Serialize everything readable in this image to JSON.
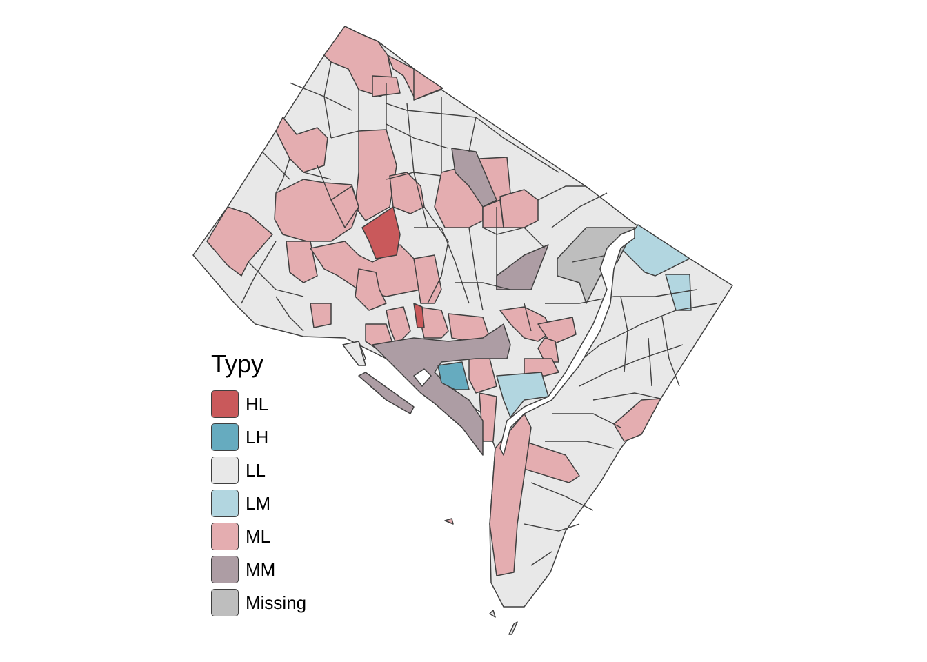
{
  "legend": {
    "title": "Typy",
    "items": [
      {
        "label": "HL",
        "color": "#c9595b"
      },
      {
        "label": "LH",
        "color": "#66abbf"
      },
      {
        "label": "LL",
        "color": "#e8e8e8"
      },
      {
        "label": "LM",
        "color": "#b2d6e0"
      },
      {
        "label": "ML",
        "color": "#e4adb0"
      },
      {
        "label": "MM",
        "color": "#ad9da4"
      },
      {
        "label": "Missing",
        "color": "#bebebe"
      }
    ]
  },
  "map": {
    "region": "Washington, D.C. census tracts",
    "layer_colors": {
      "base": "#e8e8e8",
      "border": "#3f3f3f",
      "water": "#ffffff"
    }
  }
}
